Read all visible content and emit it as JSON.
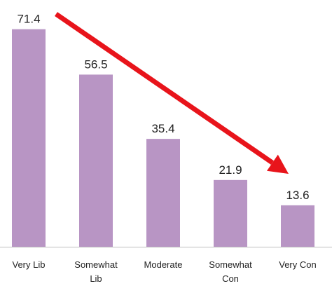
{
  "chart_data": {
    "type": "bar",
    "categories": [
      [
        "Very Lib"
      ],
      [
        "Somewhat",
        "Lib"
      ],
      [
        "Moderate"
      ],
      [
        "Somewhat",
        "Con"
      ],
      [
        "Very Con"
      ]
    ],
    "values": [
      71.4,
      56.5,
      35.4,
      21.9,
      13.6
    ],
    "value_labels": [
      "71.4",
      "56.5",
      "35.4",
      "21.9",
      "13.6"
    ],
    "ylim": [
      0,
      75
    ],
    "grid": false,
    "legend": "none",
    "bar_color": "#b895c4",
    "axis_color": "#bfbfbf",
    "annotation": {
      "type": "arrow",
      "from_category": 0,
      "to_category": 4,
      "meaning": "declining trend",
      "color": "#e8141b"
    }
  }
}
